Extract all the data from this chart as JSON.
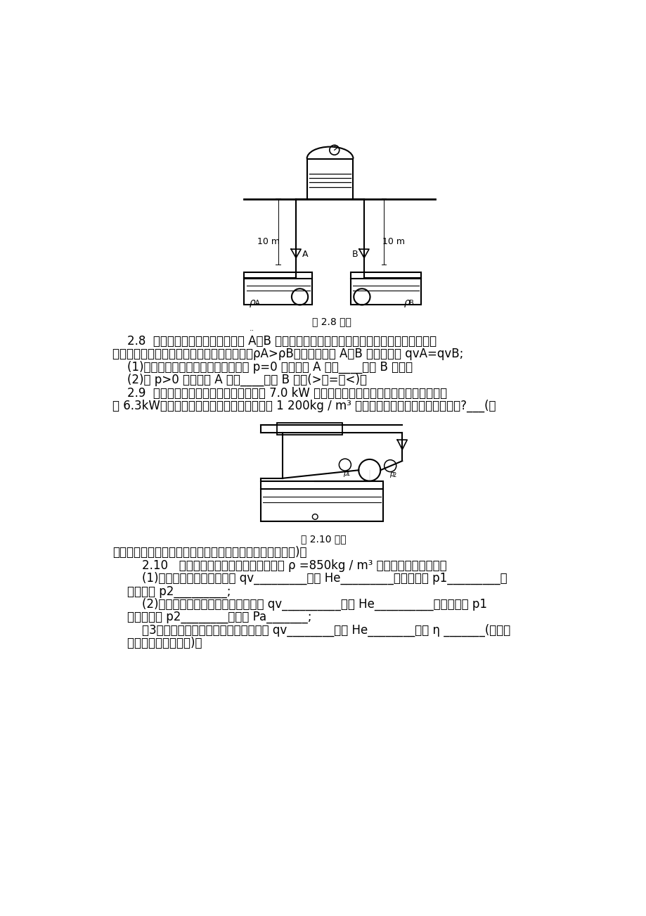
{
  "background_color": "#ffffff",
  "text_color": "#000000",
  "fig_width": 9.2,
  "fig_height": 13.02,
  "text_fontsize": 12,
  "small_fontsize": 9,
  "caption_fontsize": 10,
  "diagram1_caption": "题 2.8 附图",
  "diagram2_caption": "题 2.10 附图",
  "page_dot": "..",
  "lines_28_29": [
    "    2.8  如图示管路，用两台泵分别抽 A、B 两种液体至混合槽。已知两台泵完全相同，且几何安",
    "装位置、管路直径、长度、局部管件均相同。ρA>ρB。今用出口阀 A、B 调节至流量 qvA=qvB;",
    "    (1)，当混合槽内液面上方压强表读数 p=0 时，阀门 A 开度____阀门 B 开度；",
    "    (2)当 p>0 时，阀门 A 开度____阀门 B 开度(>、=、<)。",
    "    2.9  管路中安装一台离心泵，离心泵配有 7.0 kW 的电动机。已知用此管路输水时，泵的功率",
    "为 6.3kW。现欲用此管路输送流量相同密度为 1 200kg / m³ 的碱液。问此离心泵能否正常工作?___(假"
  ],
  "line_above210": "设管内流动皆进入阻力平方区，而且管路两端面的压差为零)。",
  "lines_210": [
    "        2.10   如图示循环管路，离心泵输送密度 ρ =850kg / m³ 的某有机液体，试问：",
    "        (1)若池中液面上升，则流量 qv_________扬程 He_________真空表读数 p1_________压",
    "    力表读数 p2_________;",
    "        (2)若离心泵输送的液体为水，则流量 qv__________扬程 He__________真空表读数 p1",
    "    压力表读数 p2________轴功率 Pa_______;",
    "        （3）若将泵的转速提高，则离心泵流量 qv________扬程 He________效率 η _______(变大、",
    "    变小、不变、不确定)。"
  ]
}
